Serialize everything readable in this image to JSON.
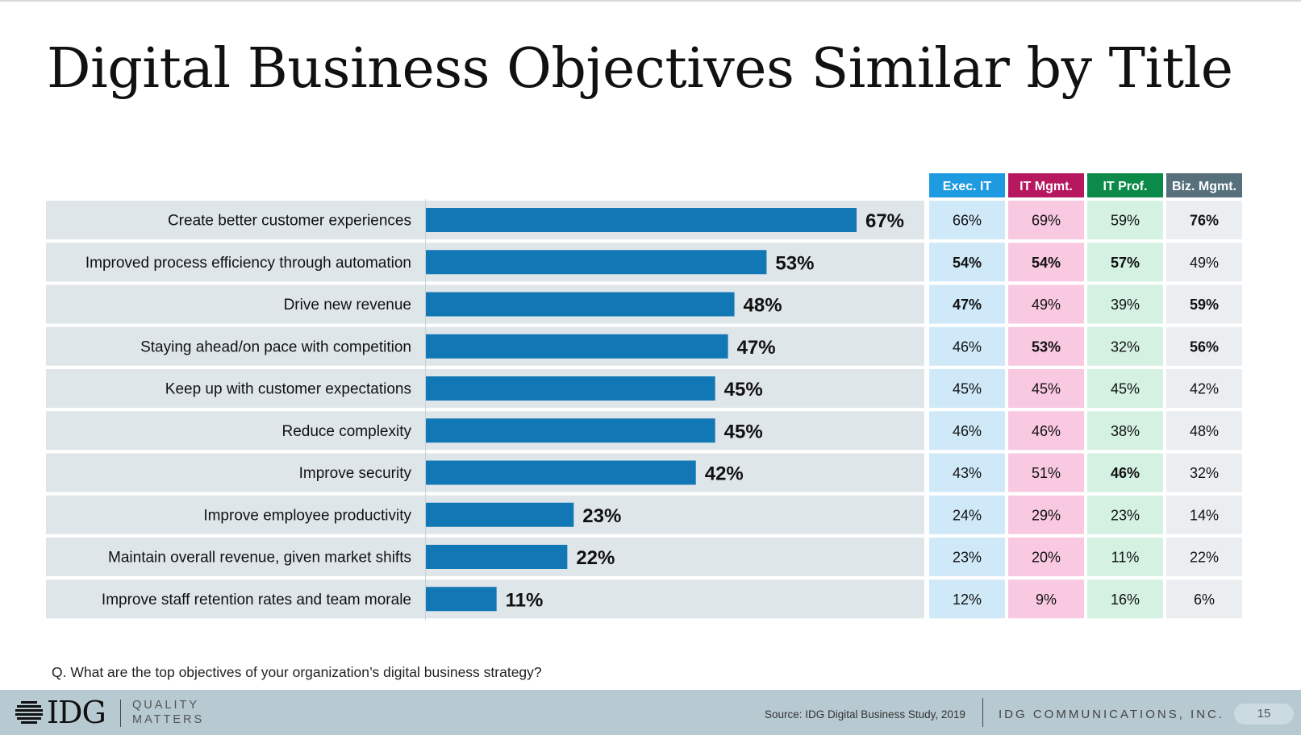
{
  "title": "Digital Business Objectives Similar by Title",
  "question": "Q. What are the top objectives of your organization’s digital business strategy?",
  "footer": {
    "logo": "IDG",
    "tagline": [
      "QUALITY",
      "MATTERS"
    ],
    "source": "Source: IDG Digital Business Study, 2019",
    "company": "IDG COMMUNICATIONS, INC.",
    "page": "15"
  },
  "colors": {
    "bar": "#1277b5",
    "row_bg": "#dfe6ea",
    "exec_header": "#1e9ae0",
    "exec_cell": "#cfe9f9",
    "itmgmt_header": "#b6175e",
    "itmgmt_cell": "#f9c8e1",
    "itprof_header": "#0b8a4a",
    "itprof_cell": "#d4f1e2",
    "biz_header": "#56707c",
    "biz_cell": "#eaeef0"
  },
  "chart_data": {
    "type": "bar",
    "orientation": "horizontal",
    "categories": [
      "Create better customer experiences",
      "Improved process efficiency through automation",
      "Drive new revenue",
      "Staying ahead/on pace with competition",
      "Keep up with customer expectations",
      "Reduce complexity",
      "Improve security",
      "Improve employee productivity",
      "Maintain overall revenue, given market shifts",
      "Improve staff retention rates and team morale"
    ],
    "values": [
      67,
      53,
      48,
      47,
      45,
      45,
      42,
      23,
      22,
      11
    ],
    "value_labels": [
      "67%",
      "53%",
      "48%",
      "47%",
      "45%",
      "45%",
      "42%",
      "23%",
      "22%",
      "11%"
    ],
    "xlim": [
      0,
      100
    ],
    "table": {
      "columns": [
        {
          "name": "Exec. IT",
          "values": [
            "66%",
            "54%",
            "47%",
            "46%",
            "45%",
            "46%",
            "43%",
            "24%",
            "23%",
            "12%"
          ],
          "bold": [
            false,
            true,
            true,
            false,
            false,
            false,
            false,
            false,
            false,
            false
          ]
        },
        {
          "name": "IT Mgmt.",
          "values": [
            "69%",
            "54%",
            "49%",
            "53%",
            "45%",
            "46%",
            "51%",
            "29%",
            "20%",
            "9%"
          ],
          "bold": [
            false,
            true,
            false,
            true,
            false,
            false,
            false,
            false,
            false,
            false
          ]
        },
        {
          "name": "IT Prof.",
          "values": [
            "59%",
            "57%",
            "39%",
            "32%",
            "45%",
            "38%",
            "46%",
            "23%",
            "11%",
            "16%"
          ],
          "bold": [
            false,
            true,
            false,
            false,
            false,
            false,
            true,
            false,
            false,
            false
          ]
        },
        {
          "name": "Biz. Mgmt.",
          "values": [
            "76%",
            "49%",
            "59%",
            "56%",
            "42%",
            "48%",
            "32%",
            "14%",
            "22%",
            "6%"
          ],
          "bold": [
            true,
            false,
            true,
            true,
            false,
            false,
            false,
            false,
            false,
            false
          ]
        }
      ]
    }
  }
}
